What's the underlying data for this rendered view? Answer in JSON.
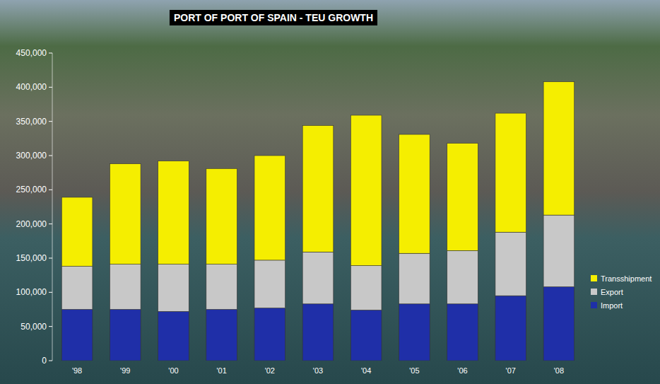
{
  "chart_data": {
    "type": "bar",
    "title": "PORT OF PORT OF SPAIN - TEU GROWTH",
    "stacked": true,
    "grid": false,
    "legend": "lower right",
    "categories": [
      "'98",
      "'99",
      "'00",
      "'01",
      "'02",
      "'03",
      "'04",
      "'05",
      "'06",
      "'07",
      "'08"
    ],
    "series": [
      {
        "name": "Import",
        "color": "#1f2fa8",
        "values": [
          75000,
          75000,
          72000,
          75000,
          77000,
          83000,
          74000,
          83000,
          83000,
          95000,
          108000
        ]
      },
      {
        "name": "Export",
        "color": "#c8c8c8",
        "values": [
          63000,
          66000,
          69000,
          66000,
          70000,
          76000,
          65000,
          74000,
          78000,
          93000,
          105000
        ]
      },
      {
        "name": "Transshipment",
        "color": "#f5ee00",
        "values": [
          101000,
          147000,
          151000,
          140000,
          153000,
          185000,
          220000,
          174000,
          157000,
          174000,
          195000
        ]
      }
    ],
    "ylim": [
      0,
      450000
    ],
    "yticks": [
      0,
      {
        "value": 50000,
        "label": "50,000"
      },
      {
        "value": 100000,
        "label": "100,000"
      },
      {
        "value": 150000,
        "label": "150,000"
      },
      {
        "value": 200000,
        "label": "200,000"
      },
      {
        "value": 250000,
        "label": "250,000"
      },
      {
        "value": 300000,
        "label": "300,000"
      },
      {
        "value": 350000,
        "label": "350,000"
      },
      {
        "value": 400000,
        "label": "400,000"
      },
      {
        "value": 450000,
        "label": "450,000"
      }
    ]
  }
}
